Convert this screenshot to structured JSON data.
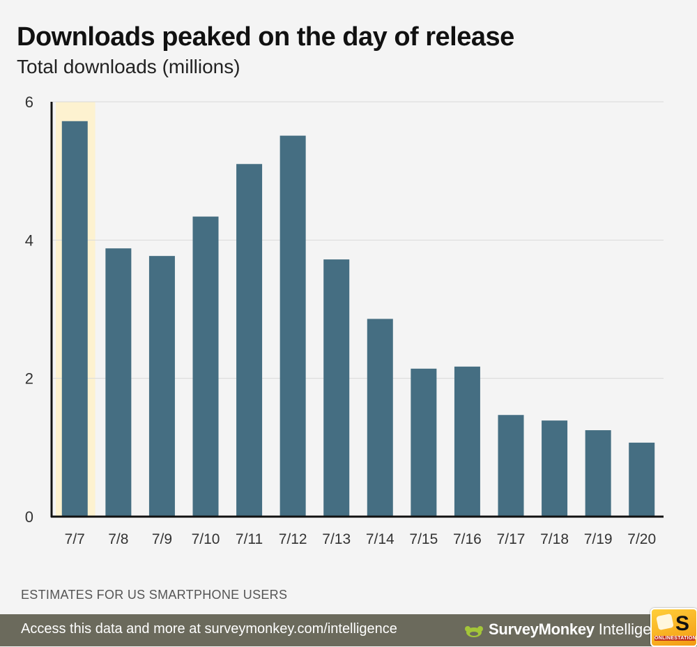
{
  "header": {
    "title": "Downloads peaked on the day of release",
    "subtitle": "Total downloads (millions)"
  },
  "chart_data": {
    "type": "bar",
    "title": "Downloads peaked on the day of release",
    "subtitle": "Total downloads (millions)",
    "xlabel": "",
    "ylabel": "",
    "categories": [
      "7/7",
      "7/8",
      "7/9",
      "7/10",
      "7/11",
      "7/12",
      "7/13",
      "7/14",
      "7/15",
      "7/16",
      "7/17",
      "7/18",
      "7/19",
      "7/20"
    ],
    "values": [
      5.72,
      3.88,
      3.77,
      4.34,
      5.1,
      5.51,
      3.72,
      2.86,
      2.14,
      2.17,
      1.47,
      1.39,
      1.25,
      1.07
    ],
    "ylim": [
      0,
      6
    ],
    "yticks": [
      0,
      2,
      4,
      6
    ],
    "highlight_category": "7/7",
    "grid": true,
    "legend": "none",
    "colors": {
      "bar": "#456e82",
      "highlight": "#fdf2d0",
      "grid": "#d9d9d9",
      "axis": "#111111"
    }
  },
  "note": "ESTIMATES FOR US SMARTPHONE USERS",
  "footer": {
    "text": "Access this data and more at surveymonkey.com/intelligence",
    "brand_name": "SurveyMonkey",
    "brand_sub": "Intellige",
    "brand_icon": "surveymonkey-logo-icon",
    "badge_icon": "onlinestation-badge-icon",
    "badge_letter": "S",
    "badge_caption": "ONLINESTATION"
  }
}
